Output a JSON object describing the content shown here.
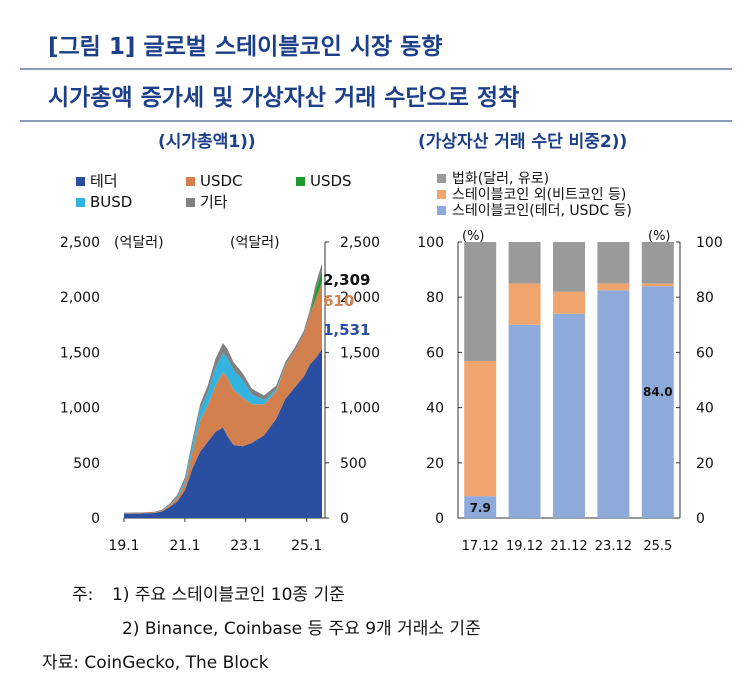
{
  "header": {
    "title_line1": "[그림 1] 글로벌 스테이블코인 시장 동향",
    "title_line2": "시가총액 증가세 및 가상자산 거래 수단으로 정착"
  },
  "footer": {
    "note_label": "주:",
    "note1": "1) 주요 스테이블코인 10종 기준",
    "note2": "2) Binance, Coinbase 등 주요 9개 거래소 기준",
    "source_label": "자료:",
    "source": "CoinGecko, The Block"
  },
  "colors": {
    "tether": "#2a4fa0",
    "usdc": "#d2804e",
    "usds": "#1e9a2e",
    "busd": "#33b3e0",
    "other": "#808080",
    "fiat": "#9a9a9a",
    "stable_other": "#f0a46e",
    "stable_main": "#8eaadb",
    "title": "#1c3f8a",
    "label_total": "#111111"
  },
  "chart_data": [
    {
      "type": "area",
      "title": "(시가총액1))",
      "unit_left": "(억달러)",
      "unit_right": "(억달러)",
      "ylim": [
        0,
        2500
      ],
      "yticks": [
        "0",
        "500",
        "1,000",
        "1,500",
        "2,000",
        "2,500"
      ],
      "yticks_values": [
        0,
        500,
        1000,
        1500,
        2000,
        2500
      ],
      "xlim": [
        2019.0,
        2025.6
      ],
      "xticks": [
        "19.1",
        "21.1",
        "23.1",
        "25.1"
      ],
      "xticks_values": [
        2019.0,
        2021.0,
        2023.0,
        2025.0
      ],
      "legend": [
        {
          "name": "테더",
          "color_key": "tether"
        },
        {
          "name": "USDC",
          "color_key": "usdc"
        },
        {
          "name": "USDS",
          "color_key": "usds"
        },
        {
          "name": "BUSD",
          "color_key": "busd"
        },
        {
          "name": "기타",
          "color_key": "other"
        }
      ],
      "x": [
        2019.0,
        2019.5,
        2020.0,
        2020.25,
        2020.5,
        2020.75,
        2021.0,
        2021.25,
        2021.5,
        2021.75,
        2022.0,
        2022.25,
        2022.4,
        2022.6,
        2022.9,
        2023.2,
        2023.6,
        2024.0,
        2024.3,
        2024.6,
        2024.9,
        2025.1,
        2025.3,
        2025.5
      ],
      "series": [
        {
          "name": "테더",
          "color_key": "tether",
          "values": [
            40,
            40,
            45,
            60,
            100,
            150,
            250,
            450,
            600,
            690,
            780,
            820,
            740,
            660,
            650,
            680,
            750,
            900,
            1080,
            1180,
            1280,
            1390,
            1450,
            1531
          ]
        },
        {
          "name": "USDC",
          "color_key": "usdc",
          "values": [
            4,
            5,
            6,
            8,
            15,
            30,
            60,
            150,
            280,
            330,
            420,
            500,
            530,
            500,
            440,
            350,
            280,
            250,
            300,
            330,
            380,
            450,
            540,
            610
          ]
        },
        {
          "name": "USDS",
          "color_key": "usds",
          "values": [
            0,
            0,
            0,
            0,
            0,
            0,
            0,
            0,
            0,
            0,
            0,
            0,
            0,
            0,
            0,
            0,
            0,
            0,
            0,
            0,
            0,
            0,
            80,
            100
          ]
        },
        {
          "name": "BUSD",
          "color_key": "busd",
          "values": [
            0,
            0,
            0,
            0,
            5,
            10,
            30,
            70,
            100,
            120,
            160,
            175,
            180,
            180,
            160,
            90,
            40,
            15,
            5,
            0,
            0,
            0,
            0,
            0
          ]
        },
        {
          "name": "기타",
          "color_key": "other",
          "values": [
            5,
            5,
            6,
            8,
            10,
            20,
            30,
            40,
            50,
            60,
            80,
            90,
            80,
            70,
            60,
            50,
            40,
            35,
            30,
            30,
            35,
            40,
            55,
            68
          ]
        }
      ],
      "labels": [
        {
          "text": "2,309",
          "value": 2309,
          "color_key": "label_total"
        },
        {
          "text": "610",
          "value": 610,
          "color_key": "usdc"
        },
        {
          "text": "1,531",
          "value": 1531,
          "color_key": "tether"
        }
      ]
    },
    {
      "type": "bar",
      "title": "(가상자산 거래 수단 비중2))",
      "unit_left": "(%)",
      "unit_right": "(%)",
      "stacked": true,
      "ylim": [
        0,
        100
      ],
      "yticks": [
        "0",
        "20",
        "40",
        "60",
        "80",
        "100"
      ],
      "yticks_values": [
        0,
        20,
        40,
        60,
        80,
        100
      ],
      "categories": [
        "17.12",
        "19.12",
        "21.12",
        "23.12",
        "25.5"
      ],
      "legend": [
        {
          "name": "법화(달러, 유로)",
          "color_key": "fiat"
        },
        {
          "name": "스테이블코인 외(비트코인 등)",
          "color_key": "stable_other"
        },
        {
          "name": "스테이블코인(테더, USDC 등)",
          "color_key": "stable_main"
        }
      ],
      "series": [
        {
          "name": "스테이블코인(테더, USDC 등)",
          "color_key": "stable_main",
          "values": [
            7.9,
            70,
            74,
            82.5,
            84.0
          ]
        },
        {
          "name": "스테이블코인 외(비트코인 등)",
          "color_key": "stable_other",
          "values": [
            49,
            15,
            8,
            2.5,
            1
          ]
        },
        {
          "name": "법화(달러, 유로)",
          "color_key": "fiat",
          "values": [
            43.1,
            15,
            18,
            15,
            15
          ]
        }
      ],
      "data_labels": [
        {
          "category_index": 0,
          "text": "7.9"
        },
        {
          "category_index": 4,
          "text": "84.0"
        }
      ]
    }
  ]
}
